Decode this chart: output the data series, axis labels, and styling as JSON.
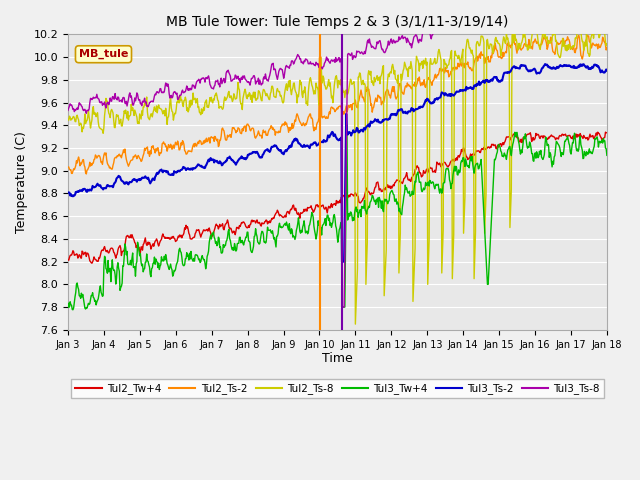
{
  "title": "MB Tule Tower: Tule Temps 2 & 3 (3/1/11-3/19/14)",
  "xlabel": "Time",
  "ylabel": "Temperature (C)",
  "ylim": [
    7.6,
    10.2
  ],
  "fig_bg": "#f0f0f0",
  "plot_bg": "#e8e8e8",
  "grid_color": "#ffffff",
  "series": {
    "Tul2_Tw+4": {
      "color": "#dd0000",
      "lw": 1.0
    },
    "Tul2_Ts-2": {
      "color": "#ff8800",
      "lw": 1.0
    },
    "Tul2_Ts-8": {
      "color": "#cccc00",
      "lw": 1.0
    },
    "Tul3_Tw+4": {
      "color": "#00bb00",
      "lw": 1.0
    },
    "Tul3_Ts-2": {
      "color": "#0000cc",
      "lw": 1.5
    },
    "Tul3_Ts-8": {
      "color": "#aa00aa",
      "lw": 1.0
    }
  },
  "legend_label": "MB_tule",
  "legend_bg": "#ffffcc",
  "legend_edge": "#cc9900",
  "legend_text_color": "#aa0000",
  "x_start_day": 3,
  "x_end_day": 18,
  "x_ticks": [
    3,
    4,
    5,
    6,
    7,
    8,
    9,
    10,
    11,
    12,
    13,
    14,
    15,
    16,
    17,
    18
  ],
  "x_tick_labels": [
    "Jan 3",
    "Jan 4",
    "Jan 5",
    "Jan 6",
    "Jan 7",
    "Jan 8",
    "Jan 9",
    "Jan 10",
    "Jan 11",
    "Jan 12",
    "Jan 13",
    "Jan 14",
    "Jan 15",
    "Jan 16",
    "Jan 17",
    "Jan 18"
  ],
  "vline_orange_x": 10.02,
  "vline_purple_x": 10.62,
  "vline_orange_color": "#ff8800",
  "vline_purple_color": "#7700aa"
}
